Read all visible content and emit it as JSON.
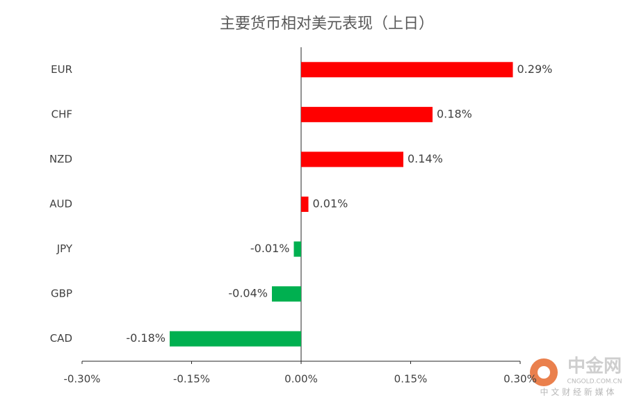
{
  "chart_data": {
    "type": "hbar",
    "title": "主要货币相对美元表现（上日）",
    "categories": [
      "EUR",
      "CHF",
      "NZD",
      "AUD",
      "JPY",
      "GBP",
      "CAD"
    ],
    "values": [
      0.29,
      0.18,
      0.14,
      0.01,
      -0.01,
      -0.04,
      -0.18
    ],
    "value_labels": [
      "0.29%",
      "0.18%",
      "0.14%",
      "0.01%",
      "-0.01%",
      "-0.04%",
      "-0.18%"
    ],
    "colors": [
      "#ff0000",
      "#ff0000",
      "#ff0000",
      "#ff0000",
      "#00b050",
      "#00b050",
      "#00b050"
    ],
    "xlim": [
      -0.3,
      0.3
    ],
    "xticks": [
      {
        "value": -0.3,
        "label": "-0.30%"
      },
      {
        "value": -0.15,
        "label": "-0.15%"
      },
      {
        "value": 0,
        "label": "0.00%"
      },
      {
        "value": 0.15,
        "label": "0.15%"
      },
      {
        "value": 0.3,
        "label": "0.30%"
      }
    ],
    "grid": false
  },
  "watermark": {
    "name": "中金网",
    "url": "CNGOLD.COM.CN",
    "tagline": "中 文 财 经 新 媒 体"
  }
}
